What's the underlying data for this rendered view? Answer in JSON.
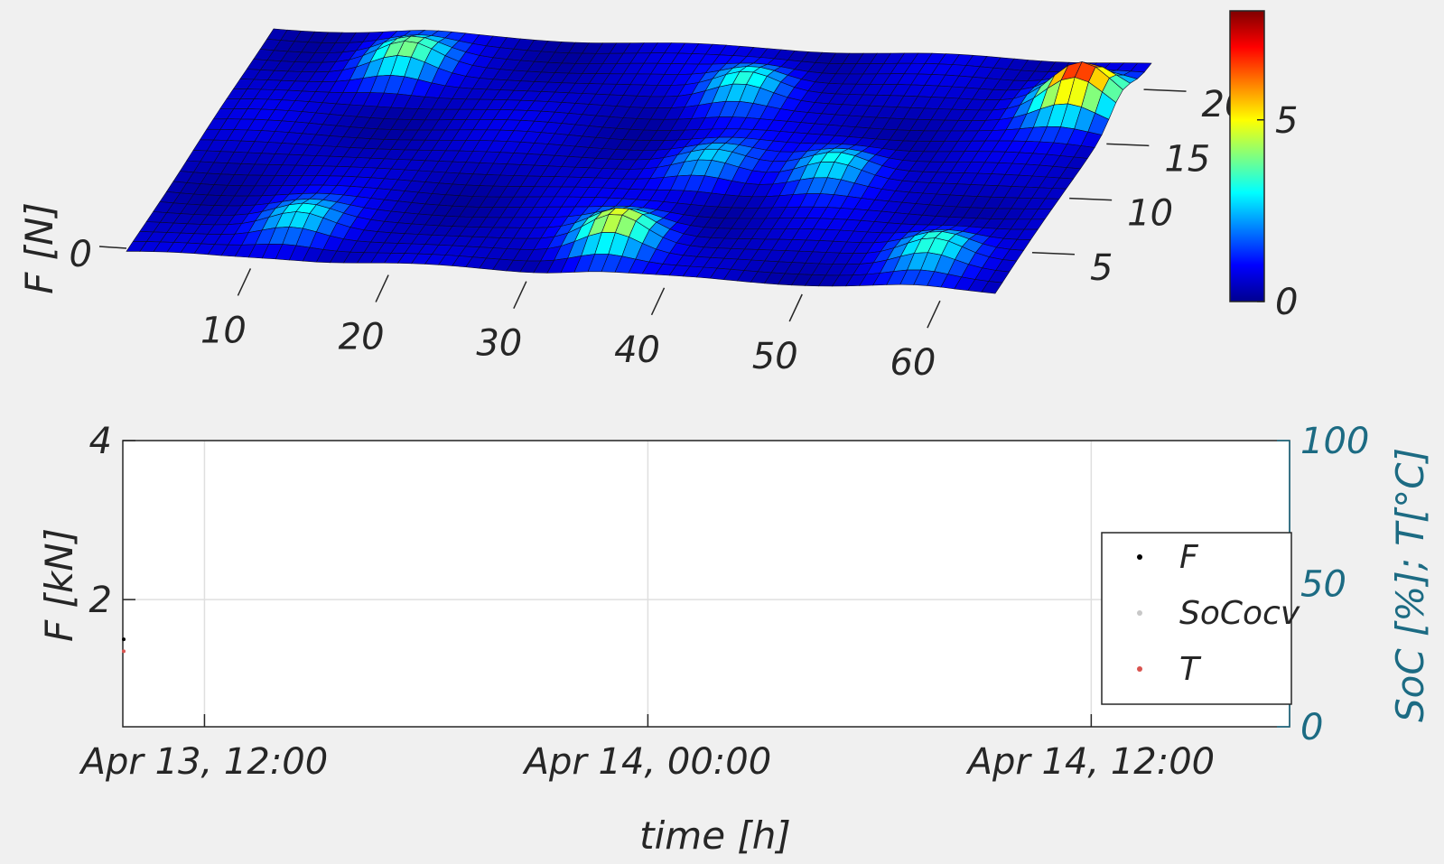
{
  "chart_data": [
    {
      "type": "heatmap",
      "subtype": "3d-surface",
      "zlabel": "F [N]",
      "x_ticks": [
        "10",
        "20",
        "30",
        "40",
        "50",
        "60"
      ],
      "y_ticks": [
        "5",
        "10",
        "15",
        "20"
      ],
      "z_ticks": [
        "0"
      ],
      "x_range": [
        1,
        64
      ],
      "y_range": [
        1,
        22
      ],
      "colorbar": {
        "ticks": [
          "0",
          "5"
        ],
        "range": [
          0,
          8
        ],
        "colormap": "jet"
      },
      "peaks": [
        {
          "x": 12,
          "y": 4,
          "value": 2.6
        },
        {
          "x": 35,
          "y": 4,
          "value": 4.6
        },
        {
          "x": 58,
          "y": 4,
          "value": 3.2
        },
        {
          "x": 38,
          "y": 11,
          "value": 2.2
        },
        {
          "x": 47,
          "y": 11,
          "value": 2.8
        },
        {
          "x": 12,
          "y": 19,
          "value": 3.6
        },
        {
          "x": 37,
          "y": 18,
          "value": 3.0
        },
        {
          "x": 61,
          "y": 18,
          "value": 6.8
        }
      ]
    },
    {
      "type": "line",
      "xlabel": "time [h]",
      "ylabel": "F [kN]",
      "ylabel_right": "SoC [%]; T[°C]",
      "x_ticks": [
        "Apr 13, 12:00",
        "Apr 14, 00:00",
        "Apr 14, 12:00"
      ],
      "y_ticks": [
        "2",
        "4"
      ],
      "y_ticks_right": [
        "0",
        "50",
        "100"
      ],
      "ylim": [
        0.4,
        4
      ],
      "ylim_right": [
        0,
        100
      ],
      "grid": true,
      "legend": {
        "placement": "right",
        "entries": [
          "F",
          "SoCocv",
          "T"
        ]
      },
      "series": [
        {
          "name": "F",
          "color": "#000000",
          "axis": "left"
        },
        {
          "name": "SoCocv",
          "color": "#c8c8c8",
          "axis": "right"
        },
        {
          "name": "T",
          "color": "#d9534f",
          "axis": "right"
        }
      ]
    }
  ]
}
